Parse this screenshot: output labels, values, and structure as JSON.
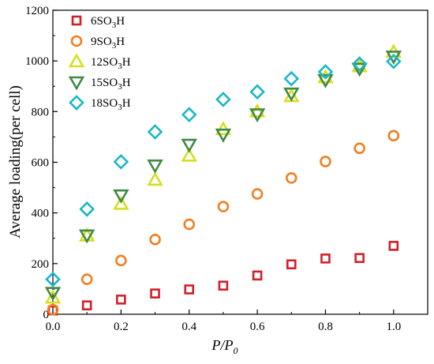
{
  "chart_data": {
    "type": "scatter",
    "title": "",
    "xlabel": {
      "main": "P/P",
      "sub": "0"
    },
    "ylabel": "Average loading(per cell)",
    "xlim": [
      0.0,
      1.1
    ],
    "ylim": [
      0,
      1200
    ],
    "xticks": [
      "0.0",
      "0.2",
      "0.4",
      "0.6",
      "0.8",
      "1.0"
    ],
    "xtick_values": [
      0.0,
      0.2,
      0.4,
      0.6,
      0.8,
      1.0
    ],
    "yticks": [
      "0",
      "200",
      "400",
      "600",
      "800",
      "1000",
      "1200"
    ],
    "ytick_values": [
      0,
      200,
      400,
      600,
      800,
      1000,
      1200
    ],
    "grid": false,
    "legend_position": "top-left",
    "x": [
      0.0,
      0.1,
      0.2,
      0.3,
      0.4,
      0.5,
      0.6,
      0.7,
      0.8,
      0.9,
      1.0
    ],
    "series": [
      {
        "name": "6SO3H",
        "legend": {
          "prefix": "6SO",
          "sub": "3",
          "suffix": "H"
        },
        "marker": "square",
        "color": "#d0202a",
        "values": [
          15,
          35,
          58,
          82,
          98,
          113,
          153,
          197,
          220,
          222,
          270
        ]
      },
      {
        "name": "9SO3H",
        "legend": {
          "prefix": "9SO",
          "sub": "3",
          "suffix": "H"
        },
        "marker": "circle",
        "color": "#f07f20",
        "values": [
          18,
          138,
          212,
          295,
          355,
          425,
          475,
          538,
          603,
          655,
          705
        ]
      },
      {
        "name": "12SO3H",
        "legend": {
          "prefix": "12SO",
          "sub": "3",
          "suffix": "H"
        },
        "marker": "triangle-up",
        "color": "#d8de1e",
        "values": [
          65,
          310,
          435,
          530,
          625,
          730,
          800,
          860,
          935,
          978,
          1035
        ]
      },
      {
        "name": "15SO3H",
        "legend": {
          "prefix": "15SO",
          "sub": "3",
          "suffix": "H"
        },
        "marker": "triangle-down",
        "color": "#3f8a47",
        "values": [
          85,
          312,
          470,
          588,
          670,
          710,
          790,
          872,
          925,
          970,
          1018
        ]
      },
      {
        "name": "18SO3H",
        "legend": {
          "prefix": "18SO",
          "sub": "3",
          "suffix": "H"
        },
        "marker": "diamond",
        "color": "#1ab7c8",
        "values": [
          138,
          415,
          602,
          720,
          788,
          848,
          878,
          930,
          957,
          988,
          998
        ]
      }
    ]
  }
}
